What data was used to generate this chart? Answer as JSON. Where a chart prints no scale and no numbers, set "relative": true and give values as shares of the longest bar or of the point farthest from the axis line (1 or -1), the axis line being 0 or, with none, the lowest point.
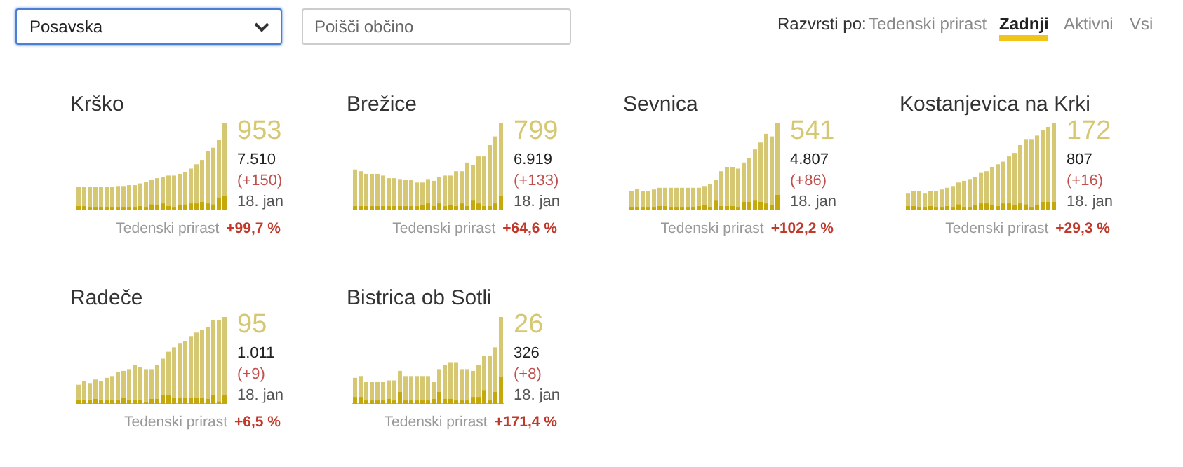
{
  "chart_data": [
    {
      "type": "other",
      "annotations": [
        "Posavska",
        "Poišči občino",
        "Razvrsti po:",
        "Tedenski prirast",
        "Zadnji",
        "Aktivni",
        "Vsi"
      ]
    },
    {
      "type": "bar",
      "title": "Krško",
      "relative": true,
      "stacked": true,
      "categories": [
        null,
        null,
        null,
        null,
        null,
        null,
        null,
        null,
        null,
        null,
        null,
        null,
        null,
        null,
        null,
        null,
        null,
        null,
        null,
        null,
        null,
        null,
        null,
        null,
        null,
        null,
        null
      ],
      "series": [
        {
          "color": "#c4a80c",
          "values": [
            0.05,
            0.05,
            0.04,
            0.04,
            0.04,
            0.04,
            0.04,
            0.04,
            0.04,
            0.04,
            0.04,
            0.05,
            0.04,
            0.07,
            0.06,
            0.08,
            0.05,
            0.04,
            0.06,
            0.07,
            0.08,
            0.08,
            0.1,
            0.08,
            0.07,
            0.15,
            0.17
          ]
        },
        {
          "color": "#d6c872",
          "values": [
            0.22,
            0.22,
            0.23,
            0.23,
            0.23,
            0.23,
            0.23,
            0.24,
            0.24,
            0.25,
            0.25,
            0.26,
            0.29,
            0.28,
            0.31,
            0.3,
            0.35,
            0.36,
            0.36,
            0.37,
            0.4,
            0.45,
            0.48,
            0.6,
            0.65,
            0.66,
            0.83
          ]
        }
      ],
      "annotations": [
        "953",
        "7.510",
        "(+150)",
        "18. jan",
        "Tedenski prirast",
        "+99,7 %"
      ]
    },
    {
      "type": "bar",
      "title": "Brežice",
      "relative": true,
      "stacked": true,
      "categories": [
        null,
        null,
        null,
        null,
        null,
        null,
        null,
        null,
        null,
        null,
        null,
        null,
        null,
        null,
        null,
        null,
        null,
        null,
        null,
        null,
        null,
        null,
        null,
        null,
        null,
        null,
        null
      ],
      "series": [
        {
          "color": "#c4a80c",
          "values": [
            0.05,
            0.05,
            0.05,
            0.05,
            0.05,
            0.05,
            0.05,
            0.05,
            0.05,
            0.05,
            0.05,
            0.05,
            0.06,
            0.08,
            0.05,
            0.08,
            0.05,
            0.06,
            0.05,
            0.08,
            0.05,
            0.12,
            0.08,
            0.05,
            0.05,
            0.08,
            0.17
          ]
        },
        {
          "color": "#d6c872",
          "values": [
            0.42,
            0.4,
            0.37,
            0.37,
            0.37,
            0.35,
            0.32,
            0.32,
            0.31,
            0.3,
            0.3,
            0.27,
            0.26,
            0.28,
            0.29,
            0.3,
            0.35,
            0.34,
            0.4,
            0.37,
            0.5,
            0.4,
            0.54,
            0.57,
            0.7,
            0.77,
            0.83
          ]
        }
      ],
      "annotations": [
        "799",
        "6.919",
        "(+133)",
        "18. jan",
        "Tedenski prirast",
        "+64,6 %"
      ]
    },
    {
      "type": "bar",
      "title": "Sevnica",
      "relative": true,
      "stacked": true,
      "categories": [
        null,
        null,
        null,
        null,
        null,
        null,
        null,
        null,
        null,
        null,
        null,
        null,
        null,
        null,
        null,
        null,
        null,
        null,
        null,
        null,
        null,
        null,
        null,
        null,
        null,
        null,
        null
      ],
      "series": [
        {
          "color": "#c4a80c",
          "values": [
            0.04,
            0.04,
            0.04,
            0.04,
            0.04,
            0.05,
            0.05,
            0.04,
            0.04,
            0.04,
            0.04,
            0.04,
            0.05,
            0.06,
            0.04,
            0.12,
            0.05,
            0.05,
            0.05,
            0.04,
            0.1,
            0.1,
            0.12,
            0.1,
            0.08,
            0.06,
            0.18
          ]
        },
        {
          "color": "#d6c872",
          "values": [
            0.18,
            0.21,
            0.18,
            0.18,
            0.2,
            0.21,
            0.21,
            0.22,
            0.22,
            0.22,
            0.22,
            0.22,
            0.21,
            0.22,
            0.26,
            0.23,
            0.4,
            0.45,
            0.45,
            0.44,
            0.45,
            0.5,
            0.58,
            0.68,
            0.8,
            0.79,
            0.82
          ]
        }
      ],
      "annotations": [
        "541",
        "4.807",
        "(+86)",
        "18. jan",
        "Tedenski prirast",
        "+102,2 %"
      ]
    },
    {
      "type": "bar",
      "title": "Kostanjevica na Krki",
      "relative": true,
      "stacked": true,
      "categories": [
        null,
        null,
        null,
        null,
        null,
        null,
        null,
        null,
        null,
        null,
        null,
        null,
        null,
        null,
        null,
        null,
        null,
        null,
        null,
        null,
        null,
        null,
        null,
        null,
        null,
        null,
        null
      ],
      "series": [
        {
          "color": "#c4a80c",
          "values": [
            0.05,
            0.05,
            0.04,
            0.04,
            0.05,
            0.04,
            0.04,
            0.05,
            0.04,
            0.07,
            0.04,
            0.04,
            0.06,
            0.08,
            0.08,
            0.06,
            0.05,
            0.08,
            0.08,
            0.06,
            0.08,
            0.07,
            0.04,
            0.06,
            0.1,
            0.1,
            0.1
          ]
        },
        {
          "color": "#d6c872",
          "values": [
            0.15,
            0.17,
            0.18,
            0.16,
            0.17,
            0.18,
            0.2,
            0.21,
            0.24,
            0.25,
            0.3,
            0.32,
            0.32,
            0.35,
            0.37,
            0.44,
            0.48,
            0.48,
            0.54,
            0.6,
            0.67,
            0.75,
            0.78,
            0.8,
            0.82,
            0.86,
            0.9
          ]
        }
      ],
      "annotations": [
        "172",
        "807",
        "(+16)",
        "18. jan",
        "Tedenski prirast",
        "+29,3 %"
      ]
    },
    {
      "type": "bar",
      "title": "Radeče",
      "relative": true,
      "stacked": true,
      "categories": [
        null,
        null,
        null,
        null,
        null,
        null,
        null,
        null,
        null,
        null,
        null,
        null,
        null,
        null,
        null,
        null,
        null,
        null,
        null,
        null,
        null,
        null,
        null,
        null,
        null,
        null,
        null
      ],
      "series": [
        {
          "color": "#c4a80c",
          "values": [
            0.05,
            0.05,
            0.05,
            0.06,
            0.05,
            0.04,
            0.05,
            0.05,
            0.07,
            0.05,
            0.05,
            0.05,
            0.02,
            0.06,
            0.06,
            0.1,
            0.1,
            0.07,
            0.07,
            0.07,
            0.07,
            0.07,
            0.07,
            0.06,
            0.1,
            0.03,
            0.1
          ]
        },
        {
          "color": "#d6c872",
          "values": [
            0.17,
            0.21,
            0.19,
            0.22,
            0.21,
            0.26,
            0.27,
            0.32,
            0.31,
            0.35,
            0.4,
            0.37,
            0.38,
            0.34,
            0.39,
            0.42,
            0.5,
            0.58,
            0.63,
            0.65,
            0.71,
            0.75,
            0.78,
            0.82,
            0.86,
            0.93,
            0.9
          ]
        }
      ],
      "annotations": [
        "95",
        "1.011",
        "(+9)",
        "18. jan",
        "Tedenski prirast",
        "+6,5 %"
      ]
    },
    {
      "type": "bar",
      "title": "Bistrica ob Sotli",
      "relative": true,
      "stacked": true,
      "categories": [
        null,
        null,
        null,
        null,
        null,
        null,
        null,
        null,
        null,
        null,
        null,
        null,
        null,
        null,
        null,
        null,
        null,
        null,
        null,
        null,
        null,
        null,
        null,
        null,
        null,
        null,
        null
      ],
      "series": [
        {
          "color": "#c4a80c",
          "values": [
            0.08,
            0.08,
            0.04,
            0.04,
            0.04,
            0.04,
            0.06,
            0.04,
            0.14,
            0.04,
            0.04,
            0.04,
            0.04,
            0.04,
            0.06,
            0.14,
            0.06,
            0.06,
            0.04,
            0.04,
            0.04,
            0.08,
            0.08,
            0.16,
            0.04,
            0.14,
            0.31
          ]
        },
        {
          "color": "#d6c872",
          "values": [
            0.22,
            0.24,
            0.21,
            0.21,
            0.21,
            0.21,
            0.21,
            0.23,
            0.24,
            0.28,
            0.28,
            0.28,
            0.28,
            0.28,
            0.19,
            0.26,
            0.39,
            0.42,
            0.44,
            0.36,
            0.36,
            0.3,
            0.37,
            0.39,
            0.51,
            0.51,
            0.69
          ]
        }
      ],
      "annotations": [
        "26",
        "326",
        "(+8)",
        "18. jan",
        "Tedenski prirast",
        "+171,4 %"
      ]
    }
  ]
}
